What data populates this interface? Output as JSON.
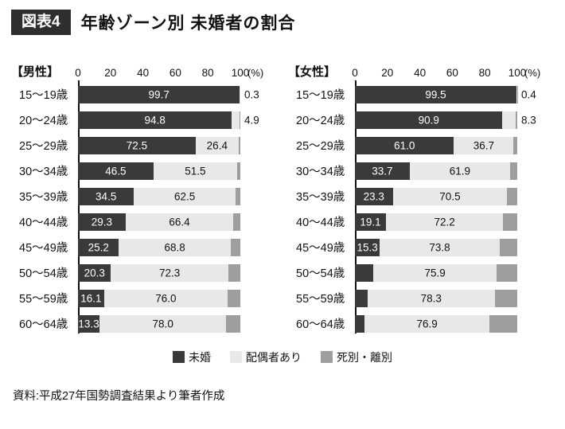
{
  "header": {
    "tag": "図表4",
    "title": "年齢ゾーン別 未婚者の割合"
  },
  "axis": {
    "ticks": [
      0,
      20,
      40,
      60,
      80,
      100
    ],
    "unit": "(%)",
    "xlim": [
      0,
      100
    ]
  },
  "legend": [
    {
      "label": "未婚",
      "color": "#3a3a3a"
    },
    {
      "label": "配偶者あり",
      "color": "#e8e8e8"
    },
    {
      "label": "死別・離別",
      "color": "#9e9e9e"
    }
  ],
  "source": "資料:平成27年国勢調査結果より筆者作成",
  "chart_data": [
    {
      "type": "bar",
      "id": "male",
      "orientation": "horizontal",
      "title": "【男性】",
      "xlim": [
        0,
        100
      ],
      "categories": [
        "15〜19歳",
        "20〜24歳",
        "25〜29歳",
        "30〜34歳",
        "35〜39歳",
        "40〜44歳",
        "45〜49歳",
        "50〜54歳",
        "55〜59歳",
        "60〜64歳"
      ],
      "series": [
        {
          "name": "未婚",
          "key": "unmarried",
          "color": "#3a3a3a",
          "values": [
            99.7,
            94.8,
            72.5,
            46.5,
            34.5,
            29.3,
            25.2,
            20.3,
            16.1,
            13.3
          ]
        },
        {
          "name": "配偶者あり",
          "key": "spouse",
          "color": "#e8e8e8",
          "values": [
            0.3,
            4.9,
            26.4,
            51.5,
            62.5,
            66.4,
            68.8,
            72.3,
            76.0,
            78.0
          ]
        },
        {
          "name": "死別・離別",
          "key": "widowed",
          "color": "#9e9e9e",
          "values": [
            0.0,
            0.3,
            1.1,
            2.0,
            3.0,
            4.3,
            6.0,
            7.4,
            7.9,
            8.7
          ]
        }
      ]
    },
    {
      "type": "bar",
      "id": "female",
      "orientation": "horizontal",
      "title": "【女性】",
      "xlim": [
        0,
        100
      ],
      "categories": [
        "15〜19歳",
        "20〜24歳",
        "25〜29歳",
        "30〜34歳",
        "35〜39歳",
        "40〜44歳",
        "45〜49歳",
        "50〜54歳",
        "55〜59歳",
        "60〜64歳"
      ],
      "series": [
        {
          "name": "未婚",
          "key": "unmarried",
          "color": "#3a3a3a",
          "values": [
            99.5,
            90.9,
            61.0,
            33.7,
            23.3,
            19.1,
            15.3,
            11.4,
            7.8,
            6.0
          ]
        },
        {
          "name": "配偶者あり",
          "key": "spouse",
          "color": "#e8e8e8",
          "values": [
            0.4,
            8.3,
            36.7,
            61.9,
            70.5,
            72.2,
            73.8,
            75.9,
            78.3,
            76.9
          ]
        },
        {
          "name": "死別・離別",
          "key": "widowed",
          "color": "#9e9e9e",
          "values": [
            0.1,
            0.8,
            2.3,
            4.4,
            6.2,
            8.7,
            10.9,
            12.7,
            13.9,
            17.1
          ]
        }
      ]
    }
  ]
}
